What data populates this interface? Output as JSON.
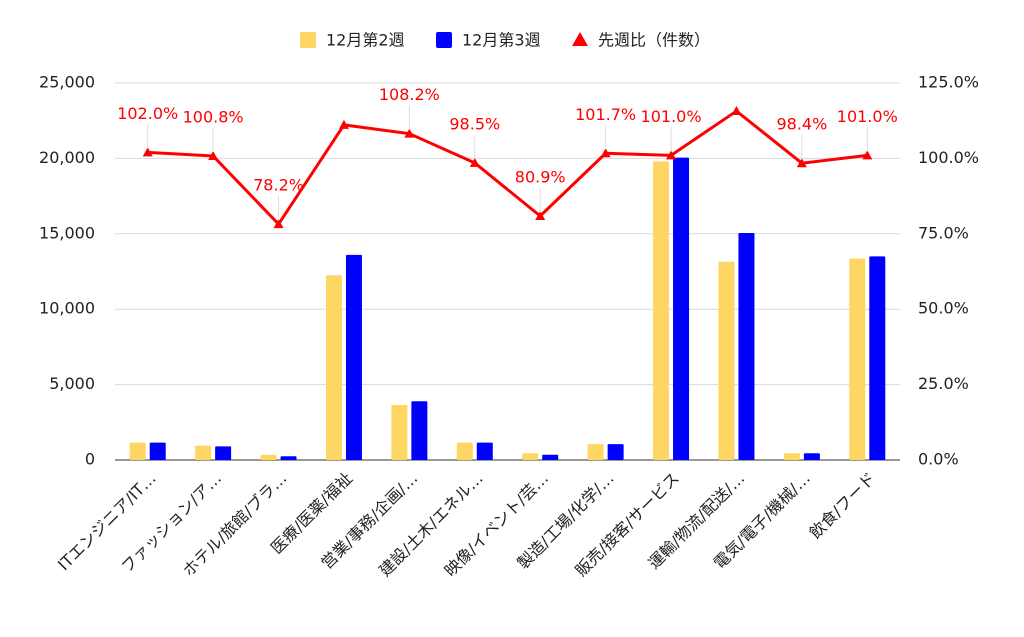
{
  "chart_data": {
    "type": "combo",
    "categories": [
      "ITエンジニア/IT…",
      "ファッション/ア…",
      "ホテル/旅館/ブラ…",
      "医療/医薬/福祉",
      "営業/事務/企画/…",
      "建設/土木/エネル…",
      "映像/イベント/芸…",
      "製造/工場/化学/…",
      "販売/接客/サービス",
      "運輸/物流/配送/…",
      "電気/電子/機械/…",
      "飲食/フード"
    ],
    "series": [
      {
        "name": "12月第2週",
        "type": "bar",
        "color": "#fdd663",
        "values": [
          1150,
          950,
          350,
          12250,
          3650,
          1150,
          450,
          1050,
          19800,
          13150,
          450,
          13350
        ]
      },
      {
        "name": "12月第3週",
        "type": "bar",
        "color": "#0000ff",
        "values": [
          1150,
          900,
          250,
          13600,
          3900,
          1150,
          350,
          1050,
          20050,
          15050,
          450,
          13500
        ]
      },
      {
        "name": "先週比（件数）",
        "type": "line",
        "axis": "y2",
        "color": "#ff0000",
        "values": [
          102.0,
          100.8,
          78.2,
          111.1,
          108.2,
          98.5,
          80.9,
          101.7,
          101.0,
          115.7,
          98.4,
          101.0
        ],
        "value_labels": [
          "102.0%",
          "100.8%",
          "78.2%",
          null,
          "108.2%",
          "98.5%",
          "80.9%",
          "101.7%",
          "101.0%",
          null,
          "98.4%",
          "101.0%"
        ]
      }
    ],
    "ylim": [
      0,
      25000
    ],
    "yticks": [
      0,
      {
        "value": 5000,
        "label": "5,000"
      },
      {
        "value": 10000,
        "label": "10,000"
      },
      {
        "value": 15000,
        "label": "15,000"
      },
      {
        "value": 20000,
        "label": "20,000"
      },
      {
        "value": 25000,
        "label": "25,000"
      }
    ],
    "y2lim": [
      0,
      125
    ],
    "y2ticks": [
      {
        "value": 0,
        "label": "0.0%"
      },
      {
        "value": 25,
        "label": "25.0%"
      },
      {
        "value": 50,
        "label": "50.0%"
      },
      {
        "value": 75,
        "label": "75.0%"
      },
      {
        "value": 100,
        "label": "100.0%"
      },
      {
        "value": 125,
        "label": "125.0%"
      }
    ],
    "grid": true,
    "legend": "top"
  }
}
